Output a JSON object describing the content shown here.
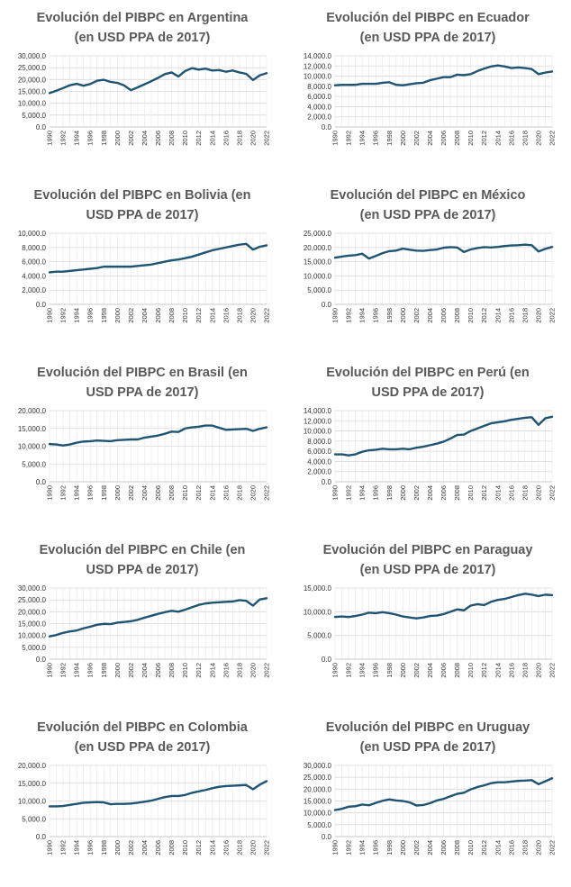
{
  "colors": {
    "line": "#1f5573",
    "title": "#595959",
    "grid": "#d9d9d9"
  },
  "chart_data": [
    {
      "id": "argentina",
      "type": "line",
      "title_lines": [
        "Evolución del PIBPC en Argentina",
        "(en USD PPA de 2017)"
      ],
      "years": [
        1990,
        1991,
        1992,
        1993,
        1994,
        1995,
        1996,
        1997,
        1998,
        1999,
        2000,
        2001,
        2002,
        2003,
        2004,
        2005,
        2006,
        2007,
        2008,
        2009,
        2010,
        2011,
        2012,
        2013,
        2014,
        2015,
        2016,
        2017,
        2018,
        2019,
        2020,
        2021,
        2022
      ],
      "xtick_labels": [
        "1990",
        "1992",
        "1994",
        "1996",
        "1998",
        "2000",
        "2002",
        "2004",
        "2006",
        "2008",
        "2010",
        "2012",
        "2014",
        "2016",
        "2018",
        "2020",
        "2022"
      ],
      "ylim": [
        0,
        30000
      ],
      "ytick_labels": [
        "0.0",
        "5,000.0",
        "10,000.0",
        "15,000.0",
        "20,000.0",
        "25,000.0",
        "30,000.0"
      ],
      "values": [
        14300,
        15300,
        16400,
        17600,
        18200,
        17400,
        18100,
        19500,
        19900,
        19000,
        18600,
        17500,
        15500,
        16700,
        18000,
        19300,
        20700,
        22300,
        23000,
        21300,
        23600,
        24800,
        24200,
        24600,
        23800,
        24000,
        23300,
        23800,
        23000,
        22400,
        19800,
        21800,
        22700
      ]
    },
    {
      "id": "ecuador",
      "type": "line",
      "title_lines": [
        "Evolución del PIBPC en Ecuador",
        "(en USD PPA de 2017)"
      ],
      "years": [
        1990,
        1991,
        1992,
        1993,
        1994,
        1995,
        1996,
        1997,
        1998,
        1999,
        2000,
        2001,
        2002,
        2003,
        2004,
        2005,
        2006,
        2007,
        2008,
        2009,
        2010,
        2011,
        2012,
        2013,
        2014,
        2015,
        2016,
        2017,
        2018,
        2019,
        2020,
        2021,
        2022
      ],
      "xtick_labels": [
        "1990",
        "1992",
        "1994",
        "1996",
        "1998",
        "2000",
        "2002",
        "2004",
        "2006",
        "2008",
        "2010",
        "2012",
        "2014",
        "2016",
        "2018",
        "2020",
        "2022"
      ],
      "ylim": [
        0,
        14000
      ],
      "ytick_labels": [
        "0.0",
        "2,000.0",
        "4,000.0",
        "6,000.0",
        "8,000.0",
        "10,000.0",
        "12,000.0",
        "14,000.0"
      ],
      "values": [
        8200,
        8300,
        8300,
        8300,
        8500,
        8500,
        8500,
        8700,
        8800,
        8300,
        8200,
        8400,
        8600,
        8700,
        9200,
        9500,
        9800,
        9800,
        10300,
        10200,
        10400,
        11000,
        11500,
        11900,
        12100,
        11900,
        11600,
        11700,
        11600,
        11400,
        10400,
        10700,
        10900
      ]
    },
    {
      "id": "bolivia",
      "type": "line",
      "title_lines": [
        "Evolución del PIBPC en Bolivia (en",
        "USD PPA de 2017)"
      ],
      "years": [
        1990,
        1991,
        1992,
        1993,
        1994,
        1995,
        1996,
        1997,
        1998,
        1999,
        2000,
        2001,
        2002,
        2003,
        2004,
        2005,
        2006,
        2007,
        2008,
        2009,
        2010,
        2011,
        2012,
        2013,
        2014,
        2015,
        2016,
        2017,
        2018,
        2019,
        2020,
        2021,
        2022
      ],
      "xtick_labels": [
        "1990",
        "1992",
        "1994",
        "1996",
        "1998",
        "2000",
        "2002",
        "2004",
        "2006",
        "2008",
        "2010",
        "2012",
        "2014",
        "2016",
        "2018",
        "2020",
        "2022"
      ],
      "ylim": [
        0,
        10000
      ],
      "ytick_labels": [
        "0.0",
        "2,000.0",
        "4,000.0",
        "6,000.0",
        "8,000.0",
        "10,000.0"
      ],
      "values": [
        4500,
        4600,
        4600,
        4700,
        4800,
        4900,
        5000,
        5100,
        5300,
        5300,
        5300,
        5300,
        5300,
        5400,
        5500,
        5600,
        5800,
        6000,
        6200,
        6300,
        6500,
        6700,
        7000,
        7300,
        7600,
        7800,
        8000,
        8200,
        8400,
        8500,
        7700,
        8100,
        8300
      ]
    },
    {
      "id": "mexico",
      "type": "line",
      "title_lines": [
        "Evolución del PIBPC en México",
        "(en USD PPA de 2017)"
      ],
      "years": [
        1990,
        1991,
        1992,
        1993,
        1994,
        1995,
        1996,
        1997,
        1998,
        1999,
        2000,
        2001,
        2002,
        2003,
        2004,
        2005,
        2006,
        2007,
        2008,
        2009,
        2010,
        2011,
        2012,
        2013,
        2014,
        2015,
        2016,
        2017,
        2018,
        2019,
        2020,
        2021,
        2022
      ],
      "xtick_labels": [
        "1990",
        "1992",
        "1994",
        "1996",
        "1998",
        "2000",
        "2002",
        "2004",
        "2006",
        "2008",
        "2010",
        "2012",
        "2014",
        "2016",
        "2018",
        "2020",
        "2022"
      ],
      "ylim": [
        0,
        25000
      ],
      "ytick_labels": [
        "0.0",
        "5,000.0",
        "10,000.0",
        "15,000.0",
        "20,000.0",
        "25,000.0"
      ],
      "values": [
        16400,
        16800,
        17100,
        17300,
        17800,
        16100,
        17000,
        18000,
        18700,
        18900,
        19600,
        19200,
        18900,
        18800,
        19100,
        19300,
        19900,
        20100,
        20000,
        18400,
        19300,
        19800,
        20100,
        20000,
        20200,
        20500,
        20700,
        20800,
        21000,
        20800,
        18600,
        19500,
        20200
      ]
    },
    {
      "id": "brasil",
      "type": "line",
      "title_lines": [
        "Evolución del PIBPC en Brasil (en",
        "USD PPA de 2017)"
      ],
      "years": [
        1990,
        1991,
        1992,
        1993,
        1994,
        1995,
        1996,
        1997,
        1998,
        1999,
        2000,
        2001,
        2002,
        2003,
        2004,
        2005,
        2006,
        2007,
        2008,
        2009,
        2010,
        2011,
        2012,
        2013,
        2014,
        2015,
        2016,
        2017,
        2018,
        2019,
        2020,
        2021,
        2022
      ],
      "xtick_labels": [
        "1990",
        "1992",
        "1994",
        "1996",
        "1998",
        "2000",
        "2002",
        "2004",
        "2006",
        "2008",
        "2010",
        "2012",
        "2014",
        "2016",
        "2018",
        "2020",
        "2022"
      ],
      "ylim": [
        0,
        20000
      ],
      "ytick_labels": [
        "0.0",
        "5,000.0",
        "10,000.0",
        "15,000.0",
        "20,000.0"
      ],
      "values": [
        10600,
        10500,
        10200,
        10500,
        11000,
        11300,
        11400,
        11600,
        11500,
        11400,
        11700,
        11800,
        11900,
        11900,
        12400,
        12700,
        13000,
        13500,
        14100,
        14000,
        15000,
        15300,
        15500,
        15800,
        15800,
        15200,
        14600,
        14700,
        14800,
        14900,
        14300,
        14900,
        15300
      ]
    },
    {
      "id": "peru",
      "type": "line",
      "title_lines": [
        "Evolución del PIBPC en Perú (en",
        "USD PPA de 2017)"
      ],
      "years": [
        1990,
        1991,
        1992,
        1993,
        1994,
        1995,
        1996,
        1997,
        1998,
        1999,
        2000,
        2001,
        2002,
        2003,
        2004,
        2005,
        2006,
        2007,
        2008,
        2009,
        2010,
        2011,
        2012,
        2013,
        2014,
        2015,
        2016,
        2017,
        2018,
        2019,
        2020,
        2021,
        2022
      ],
      "xtick_labels": [
        "1990",
        "1992",
        "1994",
        "1996",
        "1998",
        "2000",
        "2002",
        "2004",
        "2006",
        "2008",
        "2010",
        "2012",
        "2014",
        "2016",
        "2018",
        "2020",
        "2022"
      ],
      "ylim": [
        0,
        14000
      ],
      "ytick_labels": [
        "0.0",
        "2,000.0",
        "4,000.0",
        "6,000.0",
        "8,000.0",
        "10,000.0",
        "12,000.0",
        "14,000.0"
      ],
      "values": [
        5400,
        5400,
        5200,
        5400,
        5900,
        6200,
        6300,
        6500,
        6400,
        6400,
        6500,
        6400,
        6700,
        6900,
        7200,
        7500,
        7900,
        8500,
        9200,
        9300,
        10000,
        10500,
        11000,
        11500,
        11700,
        11900,
        12200,
        12400,
        12600,
        12700,
        11200,
        12500,
        12800
      ]
    },
    {
      "id": "chile",
      "type": "line",
      "title_lines": [
        "Evolución del PIBPC en Chile (en",
        "USD PPA de 2017)"
      ],
      "years": [
        1990,
        1991,
        1992,
        1993,
        1994,
        1995,
        1996,
        1997,
        1998,
        1999,
        2000,
        2001,
        2002,
        2003,
        2004,
        2005,
        2006,
        2007,
        2008,
        2009,
        2010,
        2011,
        2012,
        2013,
        2014,
        2015,
        2016,
        2017,
        2018,
        2019,
        2020,
        2021,
        2022
      ],
      "xtick_labels": [
        "1990",
        "1992",
        "1994",
        "1996",
        "1998",
        "2000",
        "2002",
        "2004",
        "2006",
        "2008",
        "2010",
        "2012",
        "2014",
        "2016",
        "2018",
        "2020",
        "2022"
      ],
      "ylim": [
        0,
        30000
      ],
      "ytick_labels": [
        "0.0",
        "5,000.0",
        "10,000.0",
        "15,000.0",
        "20,000.0",
        "25,000.0",
        "30,000.0"
      ],
      "values": [
        9600,
        10200,
        11100,
        11700,
        12100,
        13000,
        13700,
        14500,
        14900,
        14800,
        15400,
        15700,
        16000,
        16600,
        17500,
        18300,
        19100,
        19800,
        20400,
        20000,
        20900,
        21900,
        22900,
        23500,
        23800,
        24000,
        24200,
        24300,
        24900,
        24600,
        22600,
        25200,
        25700
      ]
    },
    {
      "id": "paraguay",
      "type": "line",
      "title_lines": [
        "Evolución del PIBPC en Paraguay",
        "(en USD PPA de 2017)"
      ],
      "years": [
        1990,
        1991,
        1992,
        1993,
        1994,
        1995,
        1996,
        1997,
        1998,
        1999,
        2000,
        2001,
        2002,
        2003,
        2004,
        2005,
        2006,
        2007,
        2008,
        2009,
        2010,
        2011,
        2012,
        2013,
        2014,
        2015,
        2016,
        2017,
        2018,
        2019,
        2020,
        2021,
        2022
      ],
      "xtick_labels": [
        "1990",
        "1992",
        "1994",
        "1996",
        "1998",
        "2000",
        "2002",
        "2004",
        "2006",
        "2008",
        "2010",
        "2012",
        "2014",
        "2016",
        "2018",
        "2020",
        "2022"
      ],
      "ylim": [
        0,
        15000
      ],
      "ytick_labels": [
        "0.0",
        "5,000.0",
        "10,000.0",
        "15,000.0"
      ],
      "values": [
        8900,
        9000,
        8900,
        9100,
        9400,
        9800,
        9700,
        9900,
        9700,
        9400,
        9000,
        8800,
        8600,
        8800,
        9100,
        9200,
        9500,
        10000,
        10500,
        10300,
        11300,
        11600,
        11400,
        12100,
        12500,
        12700,
        13100,
        13500,
        13800,
        13600,
        13300,
        13600,
        13500
      ]
    },
    {
      "id": "colombia",
      "type": "line",
      "title_lines": [
        "Evolución del PIBPC en Colombia",
        "(en USD PPA de 2017)"
      ],
      "years": [
        1990,
        1991,
        1992,
        1993,
        1994,
        1995,
        1996,
        1997,
        1998,
        1999,
        2000,
        2001,
        2002,
        2003,
        2004,
        2005,
        2006,
        2007,
        2008,
        2009,
        2010,
        2011,
        2012,
        2013,
        2014,
        2015,
        2016,
        2017,
        2018,
        2019,
        2020,
        2021,
        2022
      ],
      "xtick_labels": [
        "1990",
        "1992",
        "1994",
        "1996",
        "1998",
        "2000",
        "2002",
        "2004",
        "2006",
        "2008",
        "2010",
        "2012",
        "2014",
        "2016",
        "2018",
        "2020",
        "2022"
      ],
      "ylim": [
        0,
        20000
      ],
      "ytick_labels": [
        "0.0",
        "5,000.0",
        "10,000.0",
        "15,000.0",
        "20,000.0"
      ],
      "values": [
        8500,
        8500,
        8600,
        8900,
        9200,
        9500,
        9600,
        9700,
        9600,
        9100,
        9200,
        9200,
        9300,
        9500,
        9800,
        10100,
        10600,
        11100,
        11400,
        11400,
        11700,
        12300,
        12700,
        13100,
        13600,
        14000,
        14200,
        14300,
        14400,
        14500,
        13300,
        14600,
        15600
      ]
    },
    {
      "id": "uruguay",
      "type": "line",
      "title_lines": [
        "Evolución del PIBPC en Uruguay",
        "(en USD PPA de 2017)"
      ],
      "years": [
        1990,
        1991,
        1992,
        1993,
        1994,
        1995,
        1996,
        1997,
        1998,
        1999,
        2000,
        2001,
        2002,
        2003,
        2004,
        2005,
        2006,
        2007,
        2008,
        2009,
        2010,
        2011,
        2012,
        2013,
        2014,
        2015,
        2016,
        2017,
        2018,
        2019,
        2020,
        2021,
        2022
      ],
      "xtick_labels": [
        "1990",
        "1992",
        "1994",
        "1996",
        "1998",
        "2000",
        "2002",
        "2004",
        "2006",
        "2008",
        "2010",
        "2012",
        "2014",
        "2016",
        "2018",
        "2020",
        "2022"
      ],
      "ylim": [
        0,
        30000
      ],
      "ytick_labels": [
        "0.0",
        "5,000.0",
        "10,000.0",
        "15,000.0",
        "20,000.0",
        "25,000.0",
        "30,000.0"
      ],
      "values": [
        11200,
        11700,
        12600,
        12800,
        13500,
        13200,
        14200,
        15100,
        15700,
        15200,
        15000,
        14400,
        13100,
        13300,
        14100,
        15200,
        15900,
        17000,
        18000,
        18500,
        19900,
        20900,
        21600,
        22500,
        22900,
        22900,
        23200,
        23500,
        23600,
        23800,
        22100,
        23300,
        24600
      ]
    }
  ]
}
